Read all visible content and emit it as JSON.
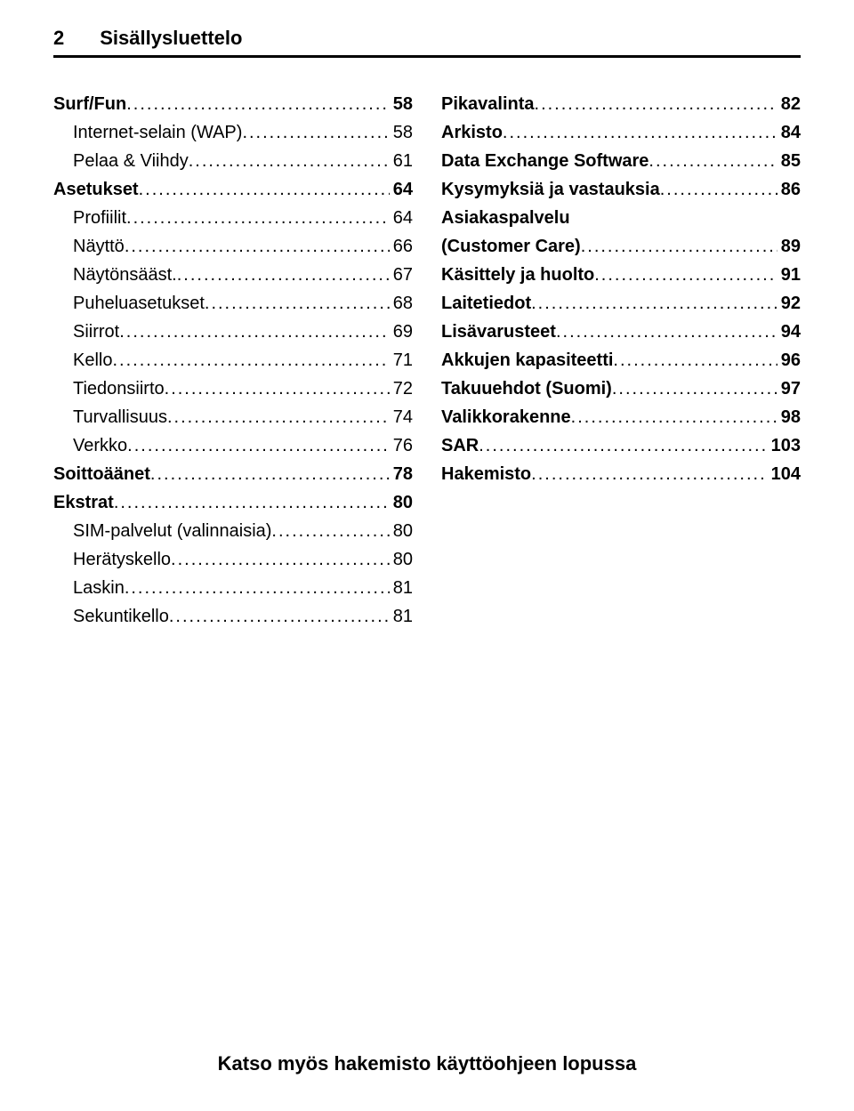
{
  "header": {
    "page_number": "2",
    "title": "Sisällysluettelo"
  },
  "colors": {
    "text": "#000000",
    "background": "#ffffff",
    "rule": "#000000"
  },
  "typography": {
    "font_family": "Arial, Helvetica, sans-serif",
    "body_size_pt": 15,
    "header_size_pt": 17,
    "line_height": 1.6
  },
  "left": [
    {
      "label": "Surf/Fun",
      "page": "58",
      "bold": true,
      "indent": false
    },
    {
      "label": "Internet-selain (WAP)",
      "page": "58",
      "bold": false,
      "indent": true
    },
    {
      "label": "Pelaa & Viihdy",
      "page": "61",
      "bold": false,
      "indent": true
    },
    {
      "label": "Asetukset",
      "page": "64",
      "bold": true,
      "indent": false
    },
    {
      "label": "Profiilit",
      "page": "64",
      "bold": false,
      "indent": true
    },
    {
      "label": "Näyttö",
      "page": "66",
      "bold": false,
      "indent": true
    },
    {
      "label": "Näytönsääst.",
      "page": "67",
      "bold": false,
      "indent": true
    },
    {
      "label": "Puheluasetukset",
      "page": "68",
      "bold": false,
      "indent": true
    },
    {
      "label": "Siirrot",
      "page": "69",
      "bold": false,
      "indent": true
    },
    {
      "label": "Kello",
      "page": "71",
      "bold": false,
      "indent": true
    },
    {
      "label": "Tiedonsiirto",
      "page": "72",
      "bold": false,
      "indent": true
    },
    {
      "label": "Turvallisuus",
      "page": "74",
      "bold": false,
      "indent": true
    },
    {
      "label": "Verkko",
      "page": "76",
      "bold": false,
      "indent": true
    },
    {
      "label": "Soittoäänet",
      "page": "78",
      "bold": true,
      "indent": false
    },
    {
      "label": "Ekstrat",
      "page": "80",
      "bold": true,
      "indent": false
    },
    {
      "label": "SIM-palvelut (valinnaisia)",
      "page": "80",
      "bold": false,
      "indent": true
    },
    {
      "label": "Herätyskello",
      "page": "80",
      "bold": false,
      "indent": true
    },
    {
      "label": "Laskin",
      "page": "81",
      "bold": false,
      "indent": true
    },
    {
      "label": "Sekuntikello",
      "page": "81",
      "bold": false,
      "indent": true
    }
  ],
  "right": [
    {
      "label": "Pikavalinta",
      "page": "82",
      "bold": true,
      "indent": false
    },
    {
      "label": "Arkisto",
      "page": "84",
      "bold": true,
      "indent": false
    },
    {
      "label": "Data Exchange Software",
      "page": "85",
      "bold": true,
      "indent": false
    },
    {
      "label": "Kysymyksiä ja vastauksia",
      "page": "86",
      "bold": true,
      "indent": false
    },
    {
      "label": "Asiakaspalvelu (Customer Care)",
      "page": "89",
      "bold": true,
      "indent": false,
      "broken": true
    },
    {
      "label": "Käsittely ja huolto",
      "page": "91",
      "bold": true,
      "indent": false
    },
    {
      "label": "Laitetiedot",
      "page": "92",
      "bold": true,
      "indent": false
    },
    {
      "label": "Lisävarusteet",
      "page": "94",
      "bold": true,
      "indent": false
    },
    {
      "label": "Akkujen kapasiteetti",
      "page": "96",
      "bold": true,
      "indent": false
    },
    {
      "label": "Takuuehdot (Suomi)",
      "page": "97",
      "bold": true,
      "indent": false
    },
    {
      "label": "Valikkorakenne",
      "page": "98",
      "bold": true,
      "indent": false
    },
    {
      "label": "SAR",
      "page": "103",
      "bold": true,
      "indent": false
    },
    {
      "label": "Hakemisto",
      "page": "104",
      "bold": true,
      "indent": false
    }
  ],
  "footer": "Katso myös hakemisto käyttöohjeen lopussa"
}
